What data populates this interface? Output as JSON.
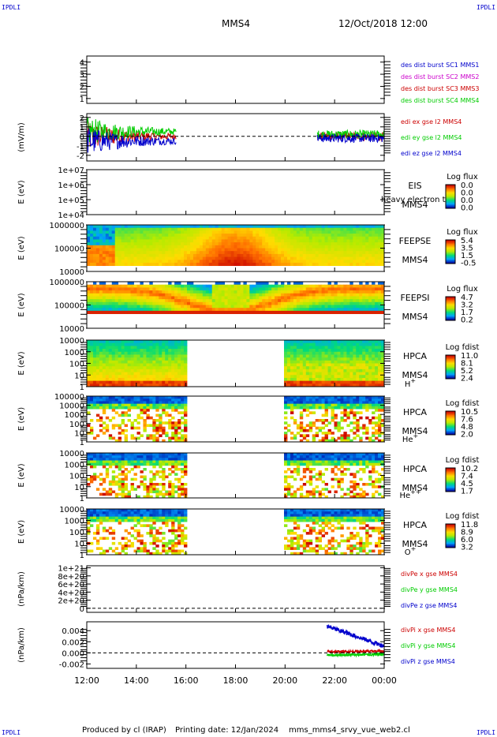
{
  "header": {
    "corner_label": "IPDLI",
    "spacecraft": "MMS4",
    "datetime": "12/Oct/2018 12:00"
  },
  "footer": {
    "produced_by": "Produced by cl (IRAP)",
    "printing_date": "Printing date: 12/Jan/2024",
    "filename": "mms_mms4_srvy_vue_web2.cl"
  },
  "colors": {
    "red": "#cc0000",
    "green": "#00cc00",
    "blue": "#0000cc",
    "magenta": "#cc00cc",
    "axis": "#000000"
  },
  "chart_data": {
    "type": "heatmap",
    "time_axis": {
      "ticks": [
        "12:00",
        "14:00",
        "16:00",
        "18:00",
        "20:00",
        "22:00",
        "00:00"
      ],
      "range_hours": [
        12,
        24
      ]
    },
    "panels": [
      {
        "id": "p1",
        "type": "line",
        "ylabel": "",
        "yticks": [
          "1",
          "2",
          "3",
          "4"
        ],
        "ylim": [
          0.6,
          4.5
        ],
        "legend": [
          {
            "text": "des dist burst SC1 MMS1",
            "color": "#0000cc"
          },
          {
            "text": "des dist burst SC2 MMS2",
            "color": "#cc00cc"
          },
          {
            "text": "des dist burst SC3 MMS3",
            "color": "#cc0000"
          },
          {
            "text": "des dist burst SC4 MMS4",
            "color": "#00cc00"
          }
        ]
      },
      {
        "id": "p2",
        "type": "line",
        "ylabel": "(mV/m)",
        "yticks": [
          "-2",
          "-1",
          "0",
          "1",
          "2"
        ],
        "ylim": [
          -2.6,
          2.4
        ],
        "zero_line": true,
        "data_intervals_hours": [
          [
            12.0,
            15.6
          ],
          [
            21.3,
            24.0
          ]
        ],
        "legend": [
          {
            "text": "edi ex gse l2 MMS4",
            "color": "#cc0000"
          },
          {
            "text": "edi ey gse l2 MMS4",
            "color": "#00cc00"
          },
          {
            "text": "edi ez gse l2 MMS4",
            "color": "#0000cc"
          }
        ]
      },
      {
        "id": "p3",
        "type": "heatmap",
        "ylabel": "E (eV)",
        "yticks": [
          "1e+04",
          "1e+05",
          "1e+06",
          "1e+07"
        ],
        "instrument": [
          "EIS",
          "MMS4"
        ],
        "overlay_text": "heavy electron to",
        "colorbar": {
          "title": "Log flux",
          "values": [
            "0.0",
            "0.0",
            "0.0",
            "0.0"
          ]
        }
      },
      {
        "id": "p4",
        "type": "heatmap",
        "ylabel": "E (eV)",
        "yticks": [
          "10000",
          "100000",
          "1000000"
        ],
        "instrument": [
          "FEEPSE",
          "MMS4"
        ],
        "data_intervals_hours": [
          [
            12.0,
            24.0
          ]
        ],
        "colorbar": {
          "title": "Log flux",
          "values": [
            "5.4",
            "3.5",
            "1.5",
            "-0.5"
          ]
        }
      },
      {
        "id": "p5",
        "type": "heatmap",
        "ylabel": "E (eV)",
        "yticks": [
          "10000",
          "100000",
          "1000000"
        ],
        "instrument": [
          "FEEPSI",
          "MMS4"
        ],
        "data_intervals_hours": [
          [
            12.0,
            24.0
          ]
        ],
        "colorbar": {
          "title": "Log flux",
          "values": [
            "4.7",
            "3.2",
            "1.7",
            "0.2"
          ]
        }
      },
      {
        "id": "p6",
        "type": "heatmap",
        "ylabel": "E (eV)",
        "yticks": [
          "1",
          "10",
          "100",
          "1000",
          "10000"
        ],
        "instrument": [
          "HPCA",
          "MMS4"
        ],
        "species": "H",
        "charge": "+",
        "data_intervals_hours": [
          [
            12.0,
            16.0
          ],
          [
            20.0,
            24.0
          ]
        ],
        "colorbar": {
          "title": "Log fdist",
          "values": [
            "11.0",
            "8.1",
            "5.2",
            "2.4"
          ]
        }
      },
      {
        "id": "p7",
        "type": "heatmap",
        "ylabel": "E (eV)",
        "yticks": [
          "1",
          "10",
          "100",
          "1000",
          "10000",
          "100000"
        ],
        "instrument": [
          "HPCA",
          "MMS4"
        ],
        "species": "He",
        "charge": "+",
        "data_intervals_hours": [
          [
            12.0,
            16.0
          ],
          [
            20.0,
            24.0
          ]
        ],
        "colorbar": {
          "title": "Log fdist",
          "values": [
            "10.5",
            "7.6",
            "4.8",
            "2.0"
          ]
        }
      },
      {
        "id": "p8",
        "type": "heatmap",
        "ylabel": "E (eV)",
        "yticks": [
          "1",
          "10",
          "100",
          "1000",
          "10000"
        ],
        "instrument": [
          "HPCA",
          "MMS4"
        ],
        "species": "He",
        "charge": "++",
        "data_intervals_hours": [
          [
            12.0,
            16.0
          ],
          [
            20.0,
            24.0
          ]
        ],
        "colorbar": {
          "title": "Log fdist",
          "values": [
            "10.2",
            "7.4",
            "4.5",
            "1.7"
          ]
        }
      },
      {
        "id": "p9",
        "type": "heatmap",
        "ylabel": "E (eV)",
        "yticks": [
          "1",
          "10",
          "100",
          "1000",
          "10000"
        ],
        "instrument": [
          "HPCA",
          "MMS4"
        ],
        "species": "O",
        "charge": "+",
        "data_intervals_hours": [
          [
            12.0,
            16.0
          ],
          [
            20.0,
            24.0
          ]
        ],
        "colorbar": {
          "title": "Log fdist",
          "values": [
            "11.8",
            "8.9",
            "6.0",
            "3.2"
          ]
        }
      },
      {
        "id": "p10",
        "type": "line",
        "ylabel": "(nPa/km)",
        "yticks": [
          "0",
          "2e+20",
          "4e+20",
          "6e+20",
          "8e+20",
          "1e+21"
        ],
        "ylim": [
          -1e+20,
          1.05e+21
        ],
        "zero_line": true,
        "legend": [
          {
            "text": "divPe x gse MMS4",
            "color": "#cc0000"
          },
          {
            "text": "divPe y gse MMS4",
            "color": "#00cc00"
          },
          {
            "text": "divPe z gse MMS4",
            "color": "#0000cc"
          }
        ]
      },
      {
        "id": "p11",
        "type": "line",
        "ylabel": "(nPa/km)",
        "yticks": [
          "-0.002",
          "0.000",
          "0.002",
          "0.004"
        ],
        "ylim": [
          -0.0028,
          0.0056
        ],
        "zero_line": true,
        "data_intervals_hours": [
          [
            21.7,
            24.0
          ]
        ],
        "series_levels": [
          {
            "name": "divPi x gse MMS4",
            "start": 0.0002,
            "end": 0.0003
          },
          {
            "name": "divPi y gse MMS4",
            "start": -0.0004,
            "end": -0.0003
          },
          {
            "name": "divPi z gse MMS4",
            "start": 0.0048,
            "end": 0.0012
          }
        ],
        "legend": [
          {
            "text": "divPi x gse MMS4",
            "color": "#cc0000"
          },
          {
            "text": "divPi y gse MMS4",
            "color": "#00cc00"
          },
          {
            "text": "divPi z gse MMS4",
            "color": "#0000cc"
          }
        ]
      }
    ]
  }
}
